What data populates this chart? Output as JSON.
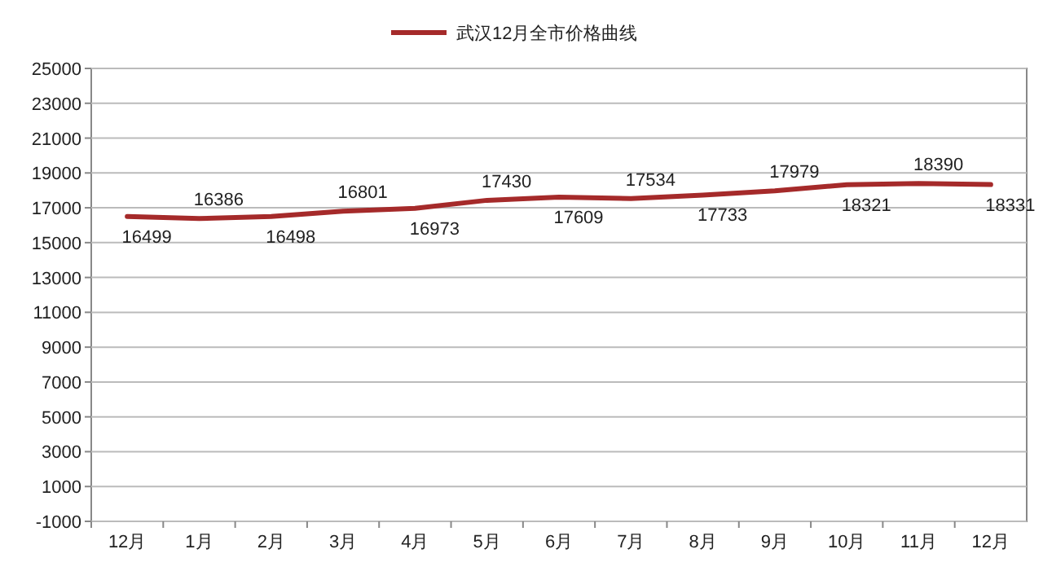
{
  "chart_data": {
    "type": "line",
    "categories": [
      "12月",
      "1月",
      "2月",
      "3月",
      "4月",
      "5月",
      "6月",
      "7月",
      "8月",
      "9月",
      "10月",
      "11月",
      "12月"
    ],
    "series": [
      {
        "name": "武汉12月全市价格曲线",
        "color": "#a52a2a",
        "values": [
          16499,
          16386,
          16498,
          16801,
          16973,
          17430,
          17609,
          17534,
          17733,
          17979,
          18321,
          18390,
          18331
        ]
      }
    ],
    "ylim": [
      -1000,
      25000
    ],
    "yticks": [
      -1000,
      1000,
      3000,
      5000,
      7000,
      9000,
      11000,
      13000,
      15000,
      17000,
      19000,
      21000,
      23000,
      25000
    ],
    "grid": "y",
    "legend": "top",
    "data_labels": true
  }
}
